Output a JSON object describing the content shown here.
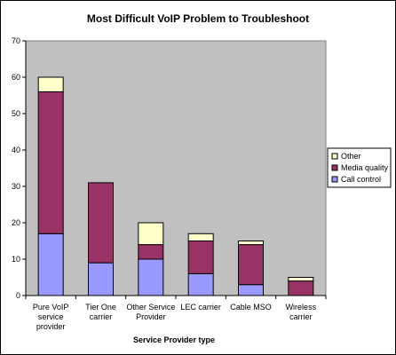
{
  "chart_data": {
    "type": "bar",
    "stacked": true,
    "title": "Most Difficult VoIP Problem to Troubleshoot",
    "xlabel": "Service Provider type",
    "ylabel": "",
    "ylim": [
      0,
      70
    ],
    "yticks": [
      0,
      10,
      20,
      30,
      40,
      50,
      60,
      70
    ],
    "grid": false,
    "legend_position": "right",
    "categories": [
      [
        "Pure VoIP",
        "service",
        "provider"
      ],
      [
        "Tier One",
        "carrier"
      ],
      [
        "Other Service",
        "Provider"
      ],
      [
        "LEC carrier"
      ],
      [
        "Cable MSO"
      ],
      [
        "Wireless",
        "carrier"
      ]
    ],
    "series": [
      {
        "name": "Call control",
        "color": "#9999FF",
        "values": [
          17,
          9,
          10,
          6,
          3,
          0
        ]
      },
      {
        "name": "Media quality",
        "color": "#993366",
        "values": [
          39,
          22,
          4,
          9,
          11,
          4
        ]
      },
      {
        "name": "Other",
        "color": "#FFFFCC",
        "values": [
          4,
          0,
          6,
          2,
          1,
          1
        ]
      }
    ],
    "legend_order": [
      "Other",
      "Media quality",
      "Call control"
    ],
    "plot_background": "#C0C0C0"
  }
}
